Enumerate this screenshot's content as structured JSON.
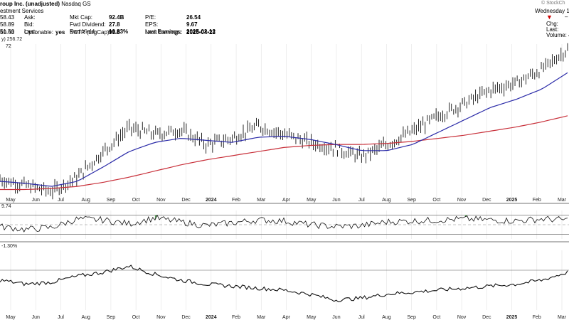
{
  "header": {
    "company": "roup Inc. (unadjusted)",
    "exchange": "Nasdaq GS",
    "sector": "estment Services",
    "col1": [
      {
        "value": "58.43",
        "label": "Ask:"
      },
      {
        "value": "58.89",
        "label": "Bid:"
      },
      {
        "value": "51.50",
        "label": "Last:"
      },
      {
        "value": "50.43",
        "label": "Optionable:",
        "extra": "yes"
      }
    ],
    "col2": [
      {
        "label": "Mkt Cap:",
        "value": "92.4B"
      },
      {
        "label": "Fwd Dividend:",
        "value": "27.8"
      },
      {
        "label": "Fwd Yield:",
        "value": "10.83%"
      },
      {
        "label": "SCTR (LrgCap):",
        "value": "91.8"
      }
    ],
    "col3": [
      {
        "label": "P/E:",
        "value": "26.54"
      },
      {
        "label": "EPS:",
        "value": "9.67"
      },
      {
        "label": "Last Earnings:",
        "value": "2025-02-12"
      },
      {
        "label": "Next Earnings:",
        "value": "2025-04-23"
      }
    ],
    "date": "Wednesday 12-M",
    "right_labels": [
      "Chg:",
      "Last:",
      "Volume: 4,0"
    ],
    "watermark": "© StockCh",
    "ma_label": "y) 256.72",
    "ma_value": "72",
    "indicator_value": "9.74",
    "relative_value": "-1.30%"
  },
  "colors": {
    "price": "#111111",
    "ma50": "#2b2ba8",
    "ma200": "#c8303a",
    "rsi_fill": "#3d8b3d",
    "bearish": "#cc0000",
    "grid": "#e2e2e2"
  },
  "chart_data": {
    "type": "line",
    "x_axis_labels": [
      "May",
      "Jun",
      "Jul",
      "Aug",
      "Sep",
      "Oct",
      "Nov",
      "Dec",
      "2024",
      "Feb",
      "Mar",
      "Apr",
      "May",
      "Jun",
      "Jul",
      "Aug",
      "Sep",
      "Oct",
      "Nov",
      "Dec",
      "2025",
      "Feb",
      "Mar"
    ],
    "series": [
      {
        "values": [
          178,
          172,
          166,
          180,
          205,
          228,
          222,
          226,
          212,
          218,
          230,
          222,
          214,
          208,
          200,
          212,
          225,
          240,
          252,
          265,
          272,
          285,
          305
        ]
      },
      {
        "values": [
          176,
          174,
          171,
          176,
          190,
          205,
          214,
          218,
          216,
          214,
          219,
          220,
          217,
          212,
          206,
          206,
          212,
          224,
          236,
          248,
          256,
          266,
          282
        ]
      },
      {
        "values": [
          168,
          168,
          169,
          171,
          175,
          180,
          186,
          192,
          197,
          201,
          205,
          209,
          211,
          212,
          212,
          213,
          215,
          218,
          221,
          225,
          229,
          234,
          240
        ]
      },
      {
        "values": [
          46,
          40,
          44,
          62,
          60,
          52,
          64,
          56,
          48,
          54,
          60,
          58,
          50,
          46,
          48,
          56,
          58,
          60,
          62,
          60,
          58,
          62,
          60
        ]
      },
      {
        "values": [
          -10,
          -14,
          -12,
          -6,
          -2,
          4,
          -4,
          -10,
          -14,
          -16,
          -18,
          -20,
          -24,
          -30,
          -28,
          -24,
          -22,
          -20,
          -18,
          -16,
          -14,
          -10,
          -2
        ]
      }
    ]
  }
}
